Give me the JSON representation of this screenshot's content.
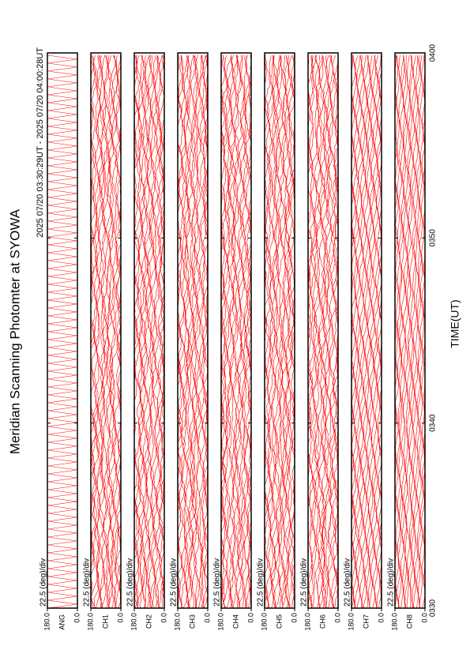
{
  "chart_data": {
    "type": "line",
    "title": "Meridian Scanning Photomter at SYOWA",
    "subtitle": "2025 07/20 03:30:29UT - 2025 07/20 04:00:28UT",
    "xlabel": "TIME(UT)",
    "xlim": [
      210,
      240
    ],
    "xticks": [
      {
        "value": 210,
        "label": "0330"
      },
      {
        "value": 220,
        "label": "0340"
      },
      {
        "value": 230,
        "label": "0350"
      },
      {
        "value": 240,
        "label": "0400"
      }
    ],
    "color": "#ff0000",
    "panels": [
      {
        "name": "ANG",
        "scale_label": "22.5 (deg)/div",
        "ylim": [
          0,
          180
        ],
        "yticks": [
          {
            "value": 0,
            "label": "0.0"
          },
          {
            "value": 180,
            "label": "180.0"
          }
        ]
      },
      {
        "name": "CH1",
        "scale_label": "22.5 (deg)/div",
        "ylim": [
          0,
          180
        ],
        "yticks": [
          {
            "value": 0,
            "label": "0.0"
          },
          {
            "value": 180,
            "label": "180.0"
          }
        ]
      },
      {
        "name": "CH2",
        "scale_label": "22.5 (deg)/div",
        "ylim": [
          0,
          180
        ],
        "yticks": [
          {
            "value": 0,
            "label": "0.0"
          },
          {
            "value": 180,
            "label": "180.0"
          }
        ]
      },
      {
        "name": "CH3",
        "scale_label": "22.5 (deg)/div",
        "ylim": [
          0,
          180
        ],
        "yticks": [
          {
            "value": 0,
            "label": "0.0"
          },
          {
            "value": 180,
            "label": "180.0"
          }
        ]
      },
      {
        "name": "CH4",
        "scale_label": "22.5 (deg)/div",
        "ylim": [
          0,
          180
        ],
        "yticks": [
          {
            "value": 0,
            "label": "0.0"
          },
          {
            "value": 180,
            "label": "180.0"
          }
        ]
      },
      {
        "name": "CH5",
        "scale_label": "22.5 (deg)/div",
        "ylim": [
          0,
          180
        ],
        "yticks": [
          {
            "value": 0,
            "label": "0.0"
          },
          {
            "value": 180,
            "label": "180.0"
          }
        ]
      },
      {
        "name": "CH6",
        "scale_label": "22.5 (deg)/div",
        "ylim": [
          0,
          180
        ],
        "yticks": [
          {
            "value": 0,
            "label": "0.0"
          },
          {
            "value": 180,
            "label": "180.0"
          }
        ]
      },
      {
        "name": "CH7",
        "scale_label": "22.5 (deg)/div",
        "ylim": [
          0,
          180
        ],
        "yticks": [
          {
            "value": 0,
            "label": "0.0"
          },
          {
            "value": 180,
            "label": "180.0"
          }
        ]
      },
      {
        "name": "CH8",
        "scale_label": "22.5 (deg)/div",
        "ylim": [
          0,
          180
        ],
        "yticks": [
          {
            "value": 0,
            "label": "0.0"
          },
          {
            "value": 180,
            "label": "180.0"
          }
        ]
      }
    ]
  }
}
